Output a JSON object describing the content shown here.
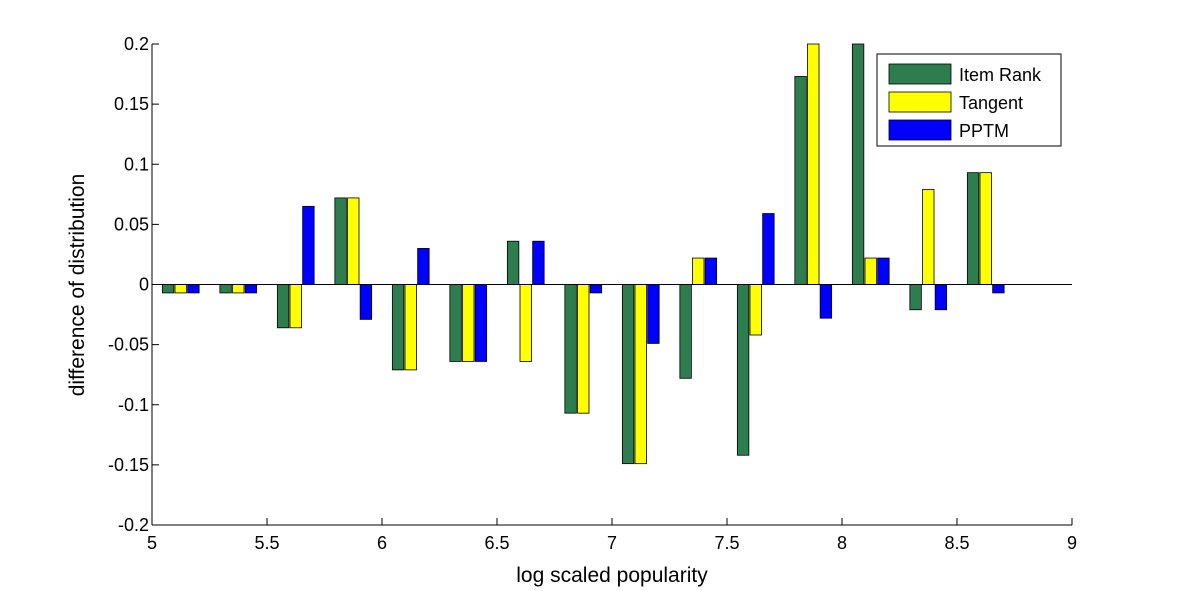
{
  "chart_data": {
    "type": "bar",
    "title": "",
    "xlabel": "log scaled popularity",
    "ylabel": "difference of distribution",
    "xlim": [
      5,
      9
    ],
    "ylim": [
      -0.2,
      0.2
    ],
    "xticks": [
      "5",
      "5.5",
      "6",
      "6.5",
      "7",
      "7.5",
      "8",
      "8.5",
      "9"
    ],
    "yticks": [
      "-0.2",
      "-0.15",
      "-0.1",
      "-0.05",
      "0",
      "0.05",
      "0.1",
      "0.15",
      "0.2"
    ],
    "grid": false,
    "legend_position": "top-right",
    "x": [
      5.125,
      5.375,
      5.625,
      5.875,
      6.125,
      6.375,
      6.625,
      6.875,
      7.125,
      7.375,
      7.625,
      7.875,
      8.125,
      8.375,
      8.625
    ],
    "series": [
      {
        "name": "Item Rank",
        "color": "#2E7D4F",
        "values": [
          -0.007,
          -0.007,
          -0.036,
          0.072,
          -0.071,
          -0.064,
          0.036,
          -0.107,
          -0.149,
          -0.078,
          -0.142,
          0.173,
          0.2,
          -0.021,
          0.093
        ]
      },
      {
        "name": "Tangent",
        "color": "#FFFF00",
        "values": [
          -0.007,
          -0.007,
          -0.036,
          0.072,
          -0.071,
          -0.064,
          -0.064,
          -0.107,
          -0.149,
          0.022,
          -0.042,
          0.2,
          0.022,
          0.079,
          0.093
        ]
      },
      {
        "name": "PPTM",
        "color": "#0000FF",
        "values": [
          -0.007,
          -0.007,
          0.065,
          -0.029,
          0.03,
          -0.064,
          0.036,
          -0.007,
          -0.049,
          0.022,
          0.059,
          -0.028,
          0.022,
          -0.021,
          -0.007
        ]
      }
    ]
  }
}
